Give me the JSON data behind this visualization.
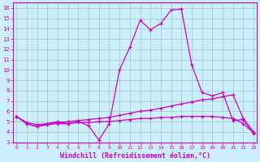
{
  "x": [
    0,
    1,
    2,
    3,
    4,
    5,
    6,
    7,
    8,
    9,
    10,
    11,
    12,
    13,
    14,
    15,
    16,
    17,
    18,
    19,
    20,
    21,
    22,
    23
  ],
  "line_main": [
    5.5,
    4.8,
    4.5,
    4.8,
    5.0,
    4.8,
    5.0,
    4.6,
    3.2,
    4.8,
    10.0,
    12.2,
    14.8,
    13.9,
    14.5,
    15.8,
    15.9,
    10.5,
    7.8,
    7.5,
    7.8,
    5.1,
    5.2,
    3.8
  ],
  "line_upper": [
    5.5,
    4.9,
    4.7,
    4.8,
    4.9,
    5.0,
    5.1,
    5.2,
    5.3,
    5.4,
    5.6,
    5.8,
    6.0,
    6.1,
    6.3,
    6.5,
    6.7,
    6.9,
    7.1,
    7.2,
    7.4,
    7.6,
    5.3,
    4.0
  ],
  "line_lower": [
    5.5,
    4.8,
    4.5,
    4.7,
    4.8,
    4.8,
    4.9,
    4.9,
    5.0,
    5.0,
    5.1,
    5.2,
    5.3,
    5.3,
    5.4,
    5.4,
    5.5,
    5.5,
    5.5,
    5.5,
    5.4,
    5.3,
    4.8,
    3.9
  ],
  "color": "#cc00cc",
  "bg_color": "#cceeff",
  "grid_color": "#99ccbb",
  "ylabel_values": [
    3,
    4,
    5,
    6,
    7,
    8,
    9,
    10,
    11,
    12,
    13,
    14,
    15,
    16
  ],
  "xlabel": "Windchill (Refroidissement éolien,°C)",
  "xlim": [
    0,
    23
  ],
  "ylim": [
    3,
    16.5
  ],
  "xticks": [
    0,
    1,
    2,
    3,
    4,
    5,
    6,
    7,
    8,
    9,
    10,
    11,
    12,
    13,
    14,
    15,
    16,
    17,
    18,
    19,
    20,
    21,
    22,
    23
  ]
}
